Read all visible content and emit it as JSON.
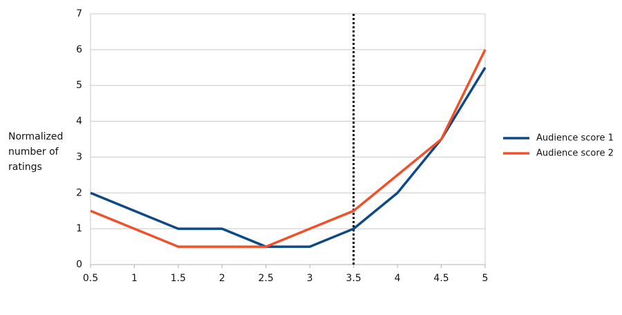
{
  "chart_data": {
    "type": "line",
    "y_label": "Normalized number of ratings",
    "x": [
      0.5,
      1,
      1.5,
      2,
      2.5,
      3,
      3.5,
      4,
      4.5,
      5
    ],
    "series": [
      {
        "name": "Audience score 1",
        "color": "#0d4a85",
        "values": [
          2,
          1.5,
          1,
          1,
          0.5,
          0.5,
          1,
          2,
          3.5,
          5.5
        ]
      },
      {
        "name": "Audience score 2",
        "color": "#f0502a",
        "values": [
          1.5,
          1,
          0.5,
          0.5,
          0.5,
          1,
          1.5,
          2.5,
          3.5,
          6
        ]
      }
    ],
    "xlim": [
      0.5,
      5
    ],
    "xticks": [
      0.5,
      1,
      1.5,
      2,
      2.5,
      3,
      3.5,
      4,
      4.5,
      5
    ],
    "ylim": [
      0,
      7
    ],
    "yticks": [
      0,
      1,
      2,
      3,
      4,
      5,
      6,
      7
    ],
    "vline_x": 3.5,
    "grid": true,
    "legend": "right"
  }
}
